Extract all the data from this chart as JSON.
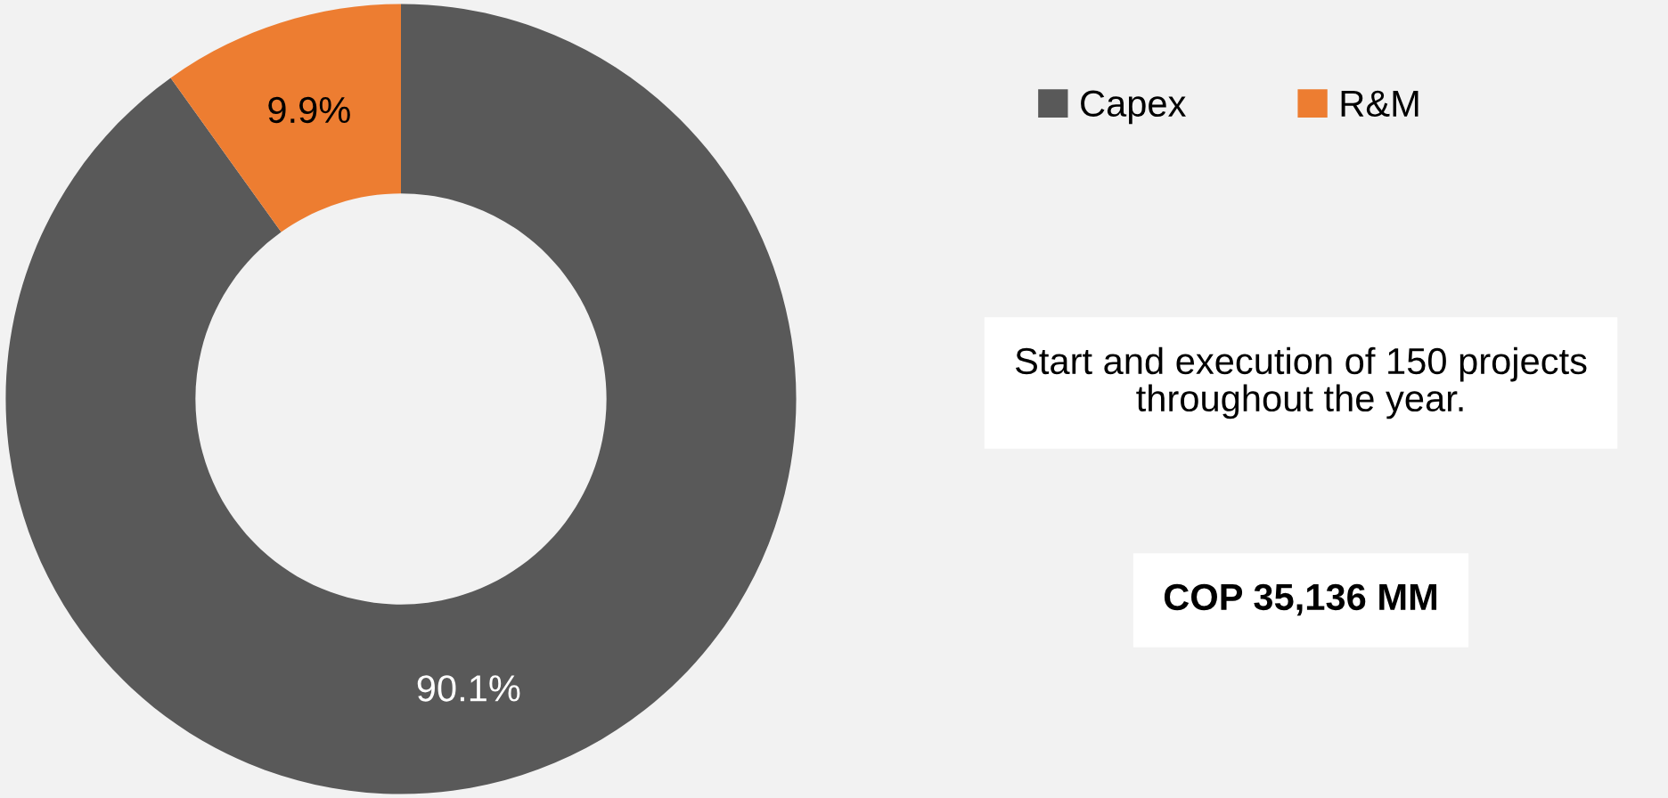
{
  "chart_data": {
    "type": "donut",
    "categories": [
      "Capex",
      "R&M"
    ],
    "values": [
      90.1,
      9.9
    ],
    "colors": [
      "#595959",
      "#ed7d31"
    ],
    "value_labels": [
      "90.1%",
      "9.9%"
    ],
    "legend": "top right",
    "annotations": [
      "Start and execution of 150 projects throughout the year.",
      "COP 35,136 MM"
    ]
  }
}
